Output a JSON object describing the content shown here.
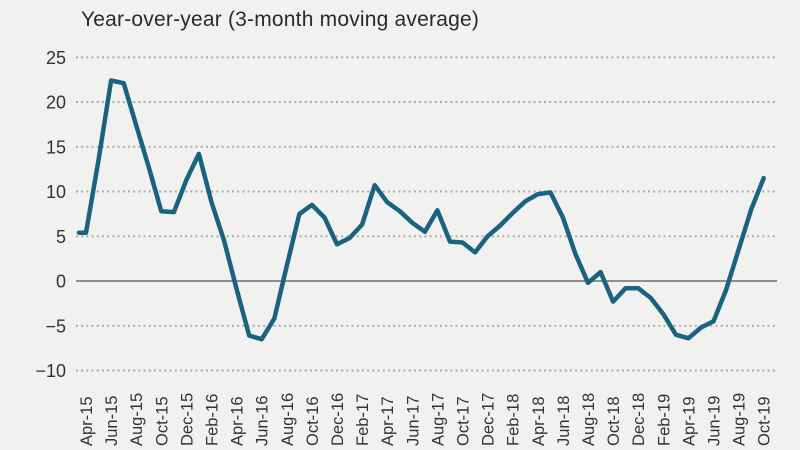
{
  "chart_data": {
    "type": "line",
    "title": "Year-over-year (3-month moving average)",
    "ylabel": "",
    "xlabel": "",
    "ylim": [
      -10,
      25
    ],
    "grid": "horizontal-dotted",
    "legend": "none",
    "zero_line": "solid",
    "x_tick_labels": [
      "Apr-15",
      "Jun-15",
      "Aug-15",
      "Oct-15",
      "Dec-15",
      "Feb-16",
      "Apr-16",
      "Jun-16",
      "Aug-16",
      "Oct-16",
      "Dec-16",
      "Feb-17",
      "Apr-17",
      "Jun-17",
      "Aug-17",
      "Oct-17",
      "Dec-17",
      "Feb-18",
      "Apr-18",
      "Jun-18",
      "Aug-18",
      "Oct-18",
      "Dec-18",
      "Feb-19",
      "Apr-19",
      "Jun-19",
      "Aug-19",
      "Oct-19"
    ],
    "tick_every": 2,
    "months": [
      "Apr-15",
      "May-15",
      "Jun-15",
      "Jul-15",
      "Aug-15",
      "Sep-15",
      "Oct-15",
      "Nov-15",
      "Dec-15",
      "Jan-16",
      "Feb-16",
      "Mar-16",
      "Apr-16",
      "May-16",
      "Jun-16",
      "Jul-16",
      "Aug-16",
      "Sep-16",
      "Oct-16",
      "Nov-16",
      "Dec-16",
      "Jan-17",
      "Feb-17",
      "Mar-17",
      "Apr-17",
      "May-17",
      "Jun-17",
      "Jul-17",
      "Aug-17",
      "Sep-17",
      "Oct-17",
      "Nov-17",
      "Dec-17",
      "Jan-18",
      "Feb-18",
      "Mar-18",
      "Apr-18",
      "May-18",
      "Jun-18",
      "Jul-18",
      "Aug-18",
      "Sep-18",
      "Oct-18",
      "Nov-18",
      "Dec-18",
      "Jan-19",
      "Feb-19",
      "Mar-19",
      "Apr-19",
      "May-19",
      "Jun-19",
      "Jul-19",
      "Aug-19",
      "Sep-19",
      "Oct-19"
    ],
    "values": [
      5.4,
      13.5,
      22.4,
      22.1,
      17.4,
      12.7,
      7.8,
      7.7,
      11.3,
      14.2,
      8.8,
      4.5,
      -0.9,
      -6.1,
      -6.5,
      -4.2,
      1.7,
      7.5,
      8.5,
      7.1,
      4.1,
      4.8,
      6.3,
      10.7,
      8.8,
      7.8,
      6.5,
      5.5,
      7.9,
      4.4,
      4.3,
      3.2,
      5.0,
      6.2,
      7.6,
      8.9,
      9.7,
      9.9,
      7.1,
      3.0,
      -0.2,
      1.0,
      -2.3,
      -0.8,
      -0.8,
      -1.9,
      -3.7,
      -6.0,
      -6.4,
      -5.2,
      -4.5,
      -1.0,
      3.5,
      8.0,
      11.5
    ],
    "yticks": [
      {
        "value": 25,
        "label": "25"
      },
      {
        "value": 20,
        "label": "20"
      },
      {
        "value": 15,
        "label": "15"
      },
      {
        "value": 10,
        "label": "10"
      },
      {
        "value": 5,
        "label": "5"
      },
      {
        "value": 0,
        "label": "0"
      },
      {
        "value": -5,
        "label": "−5"
      },
      {
        "value": -10,
        "label": "−10"
      }
    ],
    "colors": {
      "line": "#1a6380",
      "grid": "#a6a6a6",
      "zero_line": "#8f8f8f",
      "axis_text": "#333333",
      "title_text": "#2a2a2a",
      "background": "#f1f1ef"
    }
  }
}
